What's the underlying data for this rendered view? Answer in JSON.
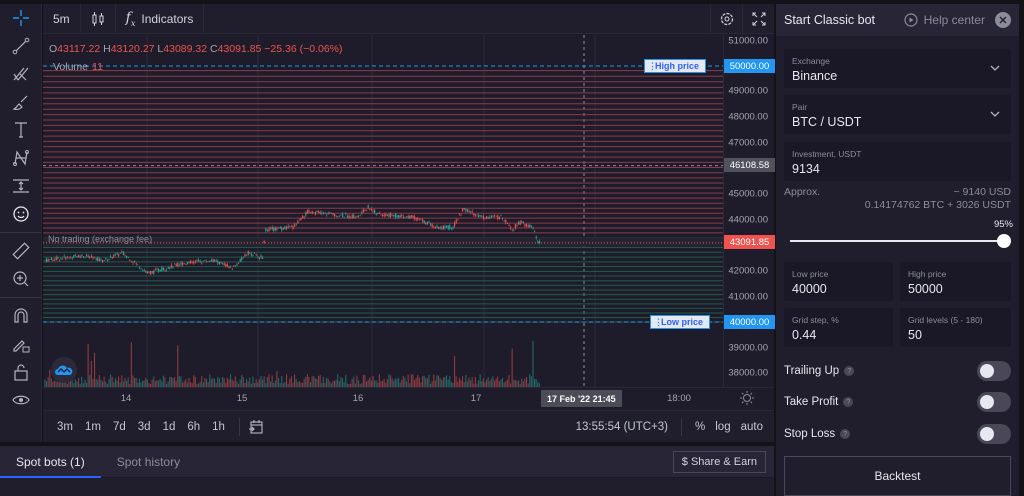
{
  "chart_toolbar": {
    "interval": "5m",
    "chart_type_icon": "candlestick-icon",
    "indicators_label": "Indicators",
    "settings_icon": "gear-icon",
    "fullscreen_icon": "fullscreen-icon"
  },
  "legend": {
    "open_prefix": "O",
    "open": "43117.22",
    "high_prefix": "H",
    "high": "43120.27",
    "low_prefix": "L",
    "low": "43089.32",
    "close_prefix": "C",
    "close": "43091.85",
    "change": "−25.36 (−0.06%)",
    "volume_label": "Volume",
    "volume_value": "11"
  },
  "annotations": {
    "no_trading": "No trading (exchange fee)",
    "high_tag": "High price",
    "low_tag": "Low price"
  },
  "price_axis": {
    "labels": [
      "51000.00",
      "50000.00",
      "49000.00",
      "48000.00",
      "47000.00",
      "46108.58",
      "45000.00",
      "44000.00",
      "43091.85",
      "42000.00",
      "41000.00",
      "40000.00",
      "39000.00",
      "38000.00"
    ],
    "high_price": "50000.00",
    "current_marker": "46108.58",
    "last_price": "43091.85",
    "low_price": "40000.00"
  },
  "time_axis": {
    "labels": [
      "14",
      "15",
      "16",
      "17",
      "18:00"
    ],
    "cursor": "17 Feb '22   21:45"
  },
  "bottom_toolbar": {
    "ranges": [
      "3m",
      "1m",
      "7d",
      "3d",
      "1d",
      "6h",
      "1h"
    ],
    "clock": "13:55:54 (UTC+3)",
    "percent": "%",
    "log": "log",
    "auto": "auto"
  },
  "bottom_panel": {
    "tabs": [
      "Spot bots (1)",
      "Spot history"
    ],
    "active_tab": 0,
    "share_label": "$ Share & Earn"
  },
  "bot_panel": {
    "title": "Start Classic bot",
    "help_label": "Help center",
    "exchange_label": "Exchange",
    "exchange_value": "Binance",
    "pair_label": "Pair",
    "pair_value": "BTC / USDT",
    "investment_label": "Investment, USDT",
    "investment_value": "9134",
    "approx_label": "Approx.",
    "approx_usd": "~ 9140 USD",
    "approx_split": "0.14174762 BTC + 3026 USDT",
    "slider_percent": "95%",
    "low_price_label": "Low price",
    "low_price_value": "40000",
    "high_price_label": "High price",
    "high_price_value": "50000",
    "grid_step_label": "Grid step, %",
    "grid_step_value": "0.44",
    "grid_levels_label": "Grid levels (5 - 180)",
    "grid_levels_value": "50",
    "trailing_up": "Trailing Up",
    "take_profit": "Take Profit",
    "stop_loss": "Stop Loss",
    "backtest": "Backtest"
  },
  "colors": {
    "up": "#26a69a",
    "down": "#ef5350",
    "accent": "#2196f3",
    "grid_sell": "#8b3a48",
    "grid_buy": "#1f5a48"
  }
}
